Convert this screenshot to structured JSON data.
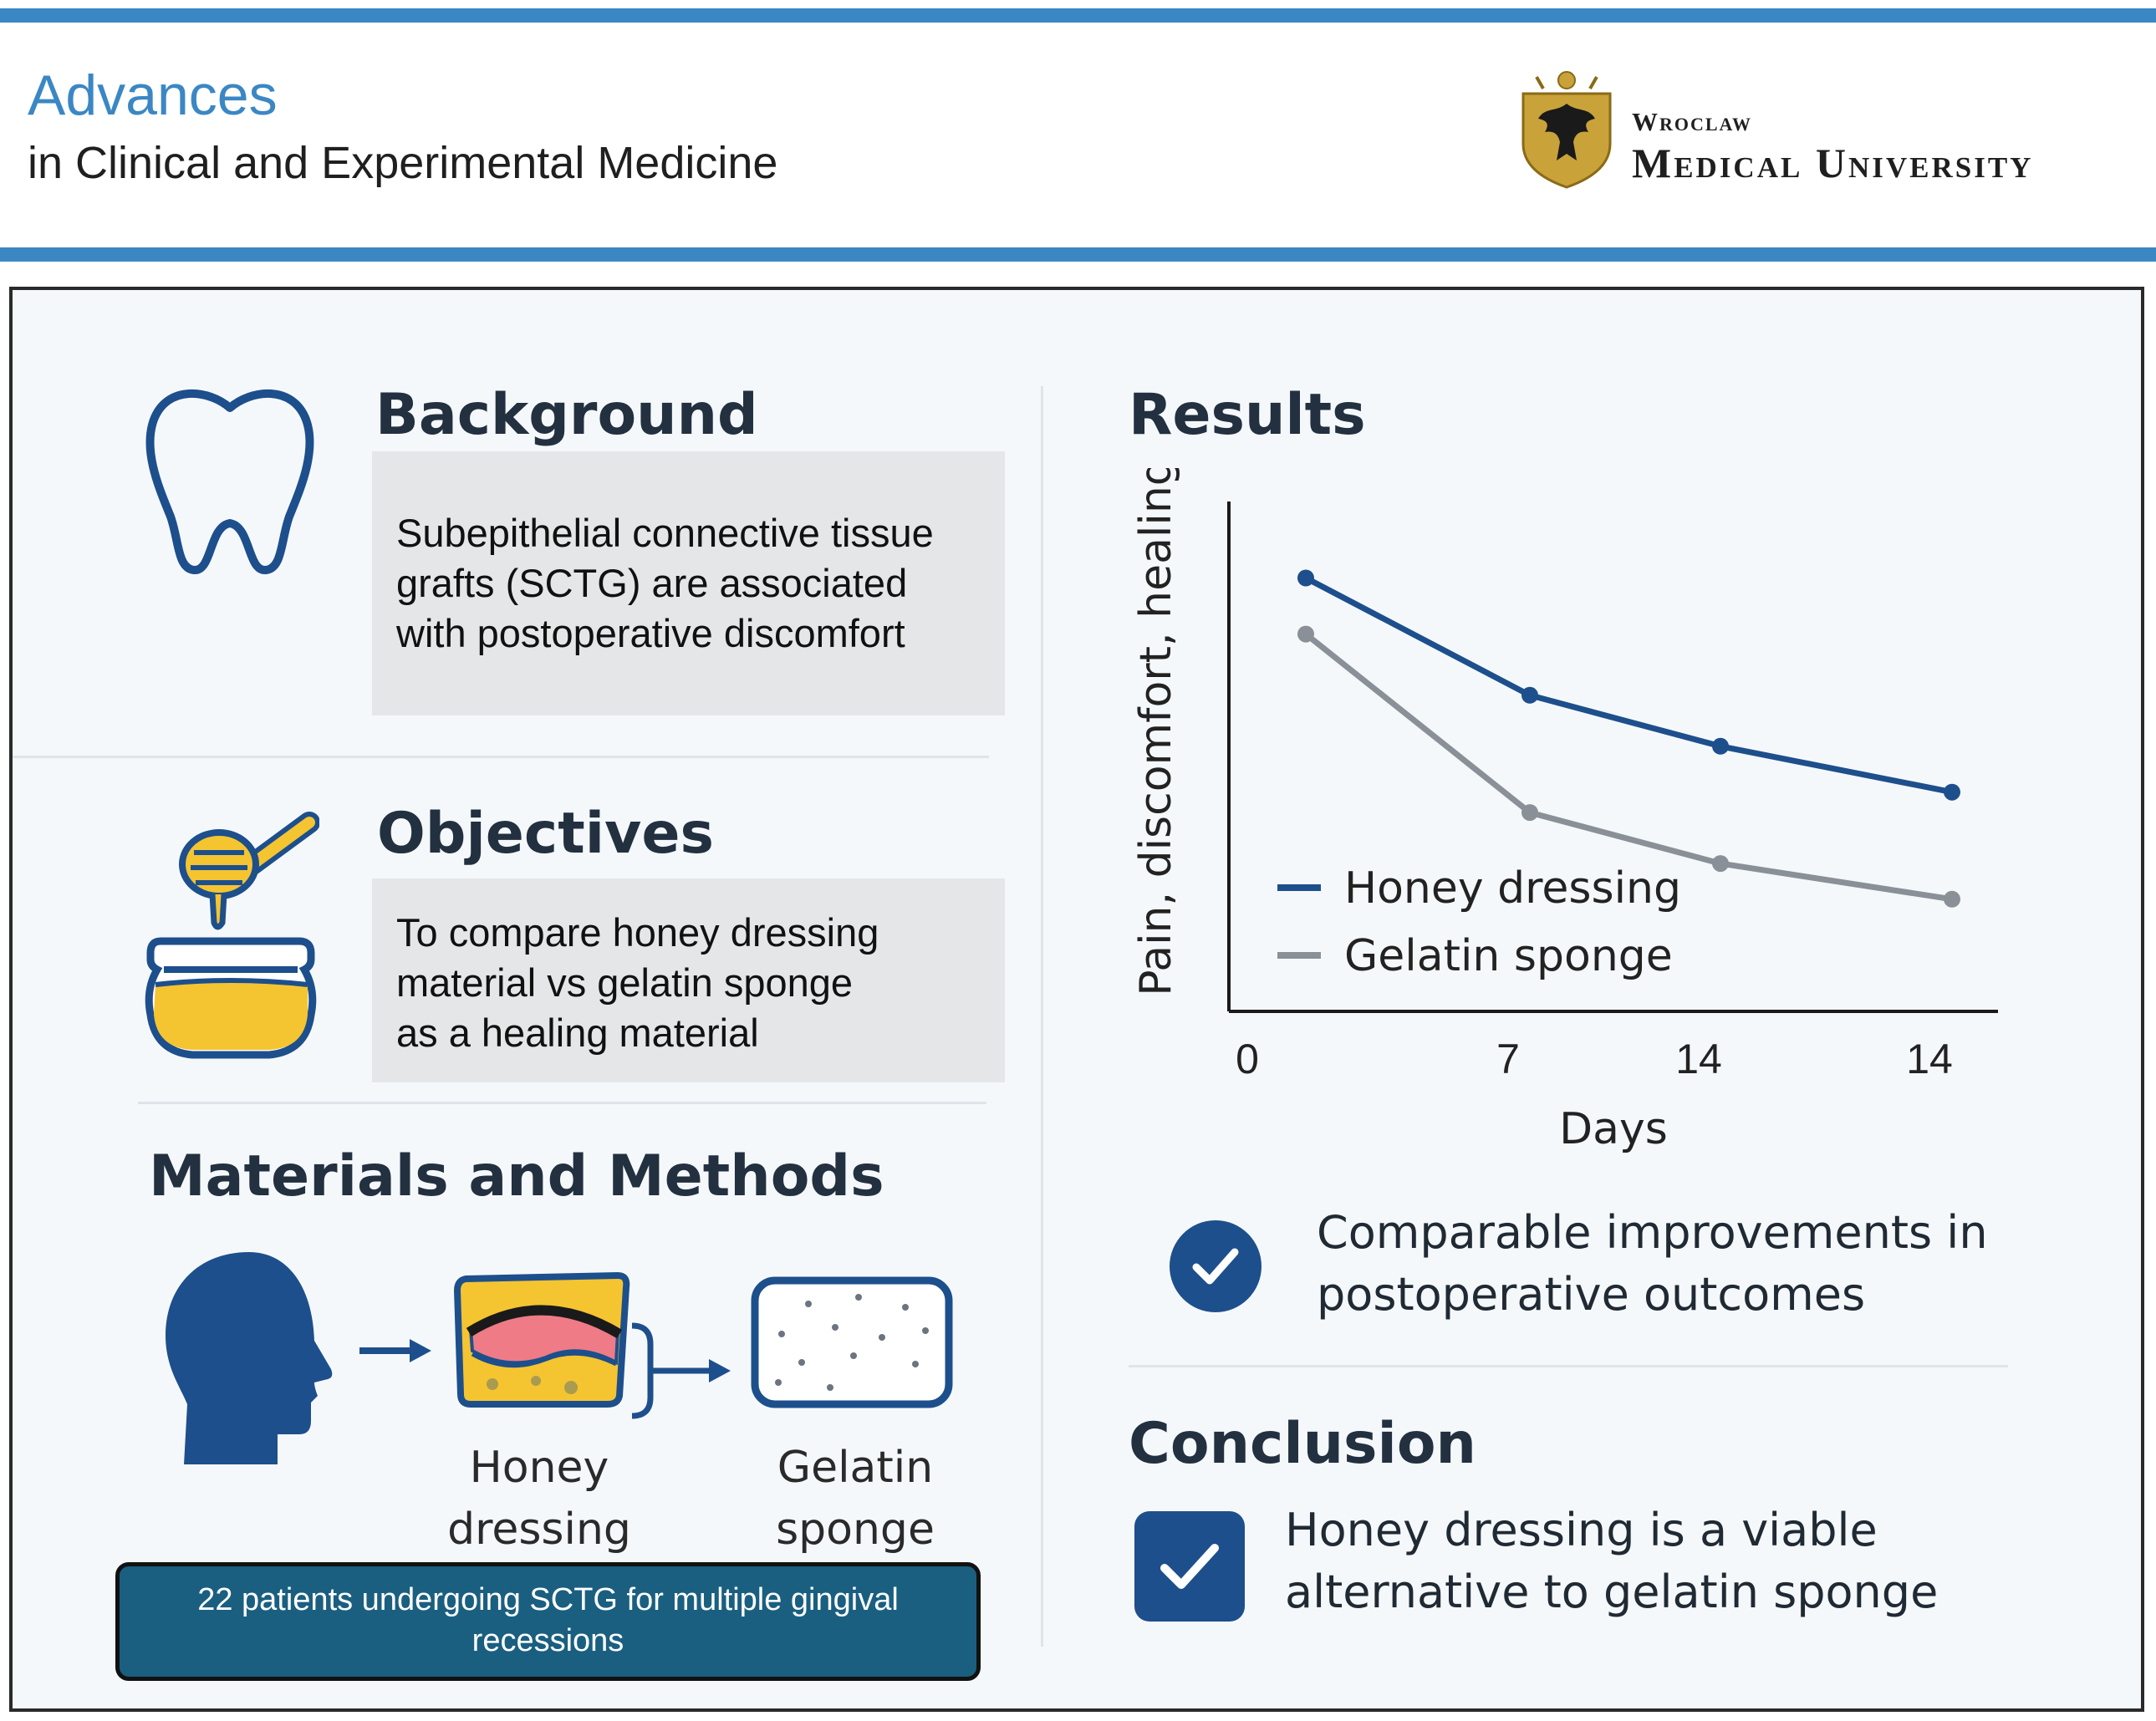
{
  "header": {
    "journal_title": "Advances",
    "journal_subtitle": "in Clinical and Experimental Medicine",
    "university_line1": "Wroclaw",
    "university_line2": "Medical University",
    "brand_color": "#3b87c4"
  },
  "background": {
    "heading": "Background",
    "icon": "tooth-icon",
    "lines": [
      "Subepithelial connective tissue",
      "grafts (SCTG) are associated",
      "with postoperative discomfort"
    ]
  },
  "objectives": {
    "heading": "Objectives",
    "icon": "honey-jar-icon",
    "lines": [
      "To compare honey dressing",
      "material vs gelatin sponge",
      "as a healing material"
    ]
  },
  "methods": {
    "heading": "Materials and Methods",
    "honey_label_lines": [
      "Honey",
      "dressing"
    ],
    "gelatin_label_lines": [
      "Gelatin",
      "sponge"
    ],
    "patients_lines": [
      "22 patients undergoing SCTG for multiple gingival",
      "recessions"
    ],
    "icons": [
      "patient-head-icon",
      "arrow-right-icon",
      "honey-dressing-icon",
      "gelatin-sponge-icon"
    ]
  },
  "results": {
    "heading": "Results",
    "outcome_lines": [
      "Comparable improvements in",
      "postoperative outcomes"
    ]
  },
  "conclusion": {
    "heading": "Conclusion",
    "lines": [
      "Honey dressing is a viable",
      "alternative to gelatin sponge"
    ]
  },
  "chart_data": {
    "type": "line",
    "xlabel": "Days",
    "ylabel": "Pain, discomfort, healing",
    "x_tick_labels": [
      "0",
      "7",
      "14",
      "14"
    ],
    "y_ticks_shown": false,
    "grid": false,
    "legend_position": "bottom-left",
    "series": [
      {
        "name": "Honey dressing",
        "color": "#1d4f8c",
        "values": [
          0.85,
          0.62,
          0.52,
          0.43
        ]
      },
      {
        "name": "Gelatin sponge",
        "color": "#8a9098",
        "values": [
          0.74,
          0.39,
          0.29,
          0.22
        ]
      }
    ]
  }
}
